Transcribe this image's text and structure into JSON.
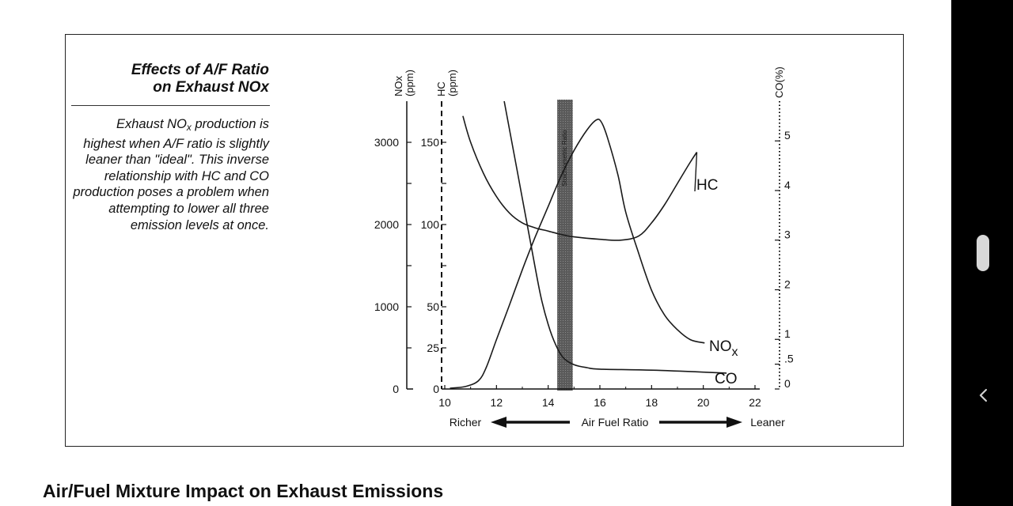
{
  "figure": {
    "title_line1": "Effects of A/F Ratio",
    "title_line2": "on Exhaust NOx",
    "caption": "Exhaust NOx production is highest when A/F ratio is slightly leaner than \"ideal\". This inverse relationship with HC and CO production poses a problem when attempting to lower all three emission levels at once."
  },
  "page": {
    "heading": "Air/Fuel Mixture Impact on Exhaust Emissions"
  },
  "chart_data": {
    "type": "line",
    "x_axis": {
      "label": "Air Fuel Ratio",
      "range": [
        10,
        22
      ],
      "ticks": [
        10,
        12,
        14,
        16,
        18,
        20,
        22
      ],
      "tick_labels": [
        "10",
        "12",
        "14",
        "16",
        "18",
        "20",
        "22"
      ],
      "left_label": "Richer",
      "right_label": "Leaner"
    },
    "y_axes": {
      "nox": {
        "label": "NOx (ppm)",
        "range": [
          0,
          3500
        ],
        "ticks": [
          0,
          1000,
          2000,
          3000
        ],
        "tick_labels": [
          "0",
          "1000",
          "2000",
          "3000"
        ]
      },
      "hc": {
        "label": "HC (ppm)",
        "range": [
          0,
          175
        ],
        "ticks": [
          0,
          25,
          50,
          100,
          150
        ],
        "tick_labels": [
          "0",
          "25",
          "50",
          "100",
          "150"
        ]
      },
      "co": {
        "label": "CO(%)",
        "range": [
          0,
          5.8
        ],
        "ticks": [
          0,
          0.5,
          1,
          2,
          3,
          4,
          5
        ],
        "tick_labels": [
          "0",
          ".5",
          "1",
          "2",
          "3",
          "4",
          "5"
        ]
      }
    },
    "band": {
      "x_range": [
        14.35,
        14.95
      ],
      "label": "Stoichiometric Ratio"
    },
    "series": [
      {
        "name": "HC",
        "axis": "hc",
        "points": [
          [
            10.7,
            166
          ],
          [
            11.0,
            150
          ],
          [
            11.5,
            131
          ],
          [
            12.0,
            117
          ],
          [
            12.5,
            107
          ],
          [
            13.0,
            101
          ],
          [
            13.5,
            98
          ],
          [
            14.0,
            96
          ],
          [
            14.5,
            94
          ],
          [
            15.0,
            92.5
          ],
          [
            16.0,
            91
          ],
          [
            16.8,
            90.5
          ],
          [
            17.5,
            93
          ],
          [
            18.0,
            101
          ],
          [
            18.5,
            112
          ],
          [
            19.0,
            125
          ],
          [
            19.5,
            138
          ],
          [
            19.75,
            144
          ]
        ]
      },
      {
        "name": "NOx",
        "axis": "nox",
        "points": [
          [
            10.2,
            10
          ],
          [
            10.8,
            30
          ],
          [
            11.3,
            100
          ],
          [
            11.6,
            260
          ],
          [
            12.0,
            600
          ],
          [
            12.5,
            1020
          ],
          [
            13.0,
            1450
          ],
          [
            13.5,
            1850
          ],
          [
            14.0,
            2220
          ],
          [
            14.5,
            2590
          ],
          [
            15.0,
            2900
          ],
          [
            15.5,
            3150
          ],
          [
            15.85,
            3270
          ],
          [
            16.05,
            3250
          ],
          [
            16.3,
            3050
          ],
          [
            16.7,
            2600
          ],
          [
            17.0,
            2150
          ],
          [
            17.5,
            1650
          ],
          [
            18.0,
            1200
          ],
          [
            18.5,
            900
          ],
          [
            19.0,
            720
          ],
          [
            19.5,
            600
          ],
          [
            20.05,
            560
          ]
        ]
      },
      {
        "name": "CO",
        "axis": "co",
        "points": [
          [
            12.3,
            5.8
          ],
          [
            12.8,
            4.4
          ],
          [
            13.3,
            3.0
          ],
          [
            13.7,
            1.9
          ],
          [
            14.0,
            1.3
          ],
          [
            14.3,
            0.88
          ],
          [
            14.6,
            0.62
          ],
          [
            15.0,
            0.49
          ],
          [
            15.5,
            0.43
          ],
          [
            16.0,
            0.4
          ],
          [
            18.0,
            0.38
          ],
          [
            20.0,
            0.34
          ],
          [
            20.9,
            0.32
          ]
        ]
      }
    ]
  }
}
